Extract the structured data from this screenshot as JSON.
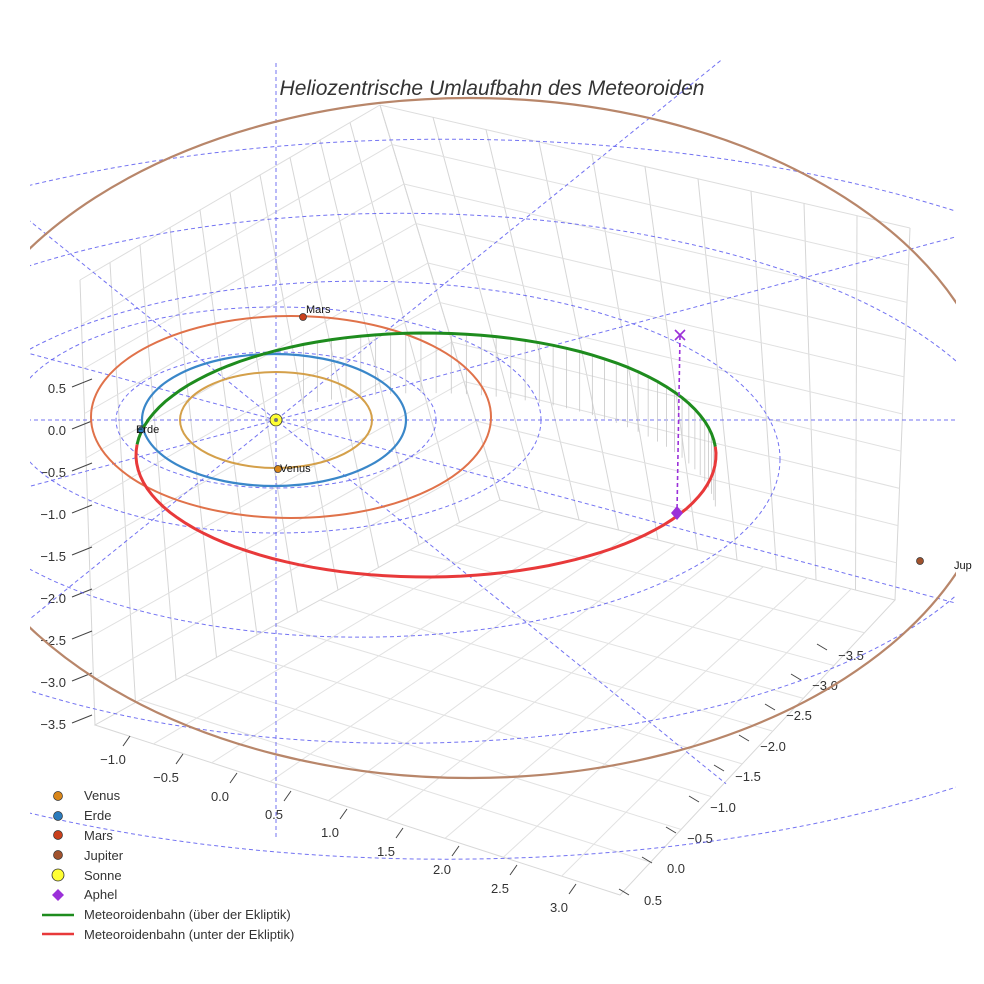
{
  "chart_data": {
    "type": "scatter",
    "title": "Heliozentrische Umlaufbahn des Meteoroiden",
    "axes": {
      "x_ticks": [
        "−1.0",
        "−0.5",
        "0.0",
        "0.5",
        "1.0",
        "1.5",
        "2.0",
        "2.5",
        "3.0"
      ],
      "y_ticks": [
        "−3.5",
        "−3.0",
        "−2.5",
        "−2.0",
        "−1.5",
        "−1.0",
        "−0.5",
        "0.0",
        "0.5"
      ],
      "z_ticks": [
        "0.5",
        "0.0",
        "−0.5",
        "−1.0",
        "−1.5",
        "−2.0",
        "−2.5",
        "−3.0",
        "−3.5"
      ],
      "grid": true
    },
    "orbits": [
      {
        "name": "Venus",
        "color": "#d4a04a"
      },
      {
        "name": "Erde",
        "color": "#3a87c9"
      },
      {
        "name": "Mars",
        "color": "#e0724a"
      },
      {
        "name": "Jupiter",
        "color": "#b8866a"
      }
    ],
    "points": [
      {
        "name": "Venus",
        "label": "Venus",
        "color": "#d9861a"
      },
      {
        "name": "Erde",
        "label": "Erde",
        "color": "#2b7bbd"
      },
      {
        "name": "Mars",
        "label": "Mars",
        "color": "#c9401c"
      },
      {
        "name": "Jupiter",
        "label": "Jup",
        "color": "#a0522d"
      },
      {
        "name": "Sonne",
        "label": "",
        "color": "#ffff33"
      },
      {
        "name": "Aphel",
        "label": "",
        "color": "#9b30d9"
      }
    ],
    "meteoroid_track": [
      {
        "name": "Meteoroidenbahn (über der Ekliptik)",
        "color": "#1e8c1e"
      },
      {
        "name": "Meteoroidenbahn (unter der Ekliptik)",
        "color": "#e8393a"
      }
    ],
    "ecliptic_grid_color": "#5b5bf0",
    "aphel_projection_color": "#9b30d9"
  },
  "legend": [
    {
      "label": "Venus",
      "symbol": "dot",
      "color": "#d9861a"
    },
    {
      "label": "Erde",
      "symbol": "dot",
      "color": "#2b7bbd"
    },
    {
      "label": "Mars",
      "symbol": "dot",
      "color": "#c9401c"
    },
    {
      "label": "Jupiter",
      "symbol": "dot",
      "color": "#a0522d"
    },
    {
      "label": "Sonne",
      "symbol": "sun",
      "color": "#ffff33"
    },
    {
      "label": "Aphel",
      "symbol": "diamond",
      "color": "#9b30d9"
    },
    {
      "label": "Meteoroidenbahn (über der Ekliptik)",
      "symbol": "line",
      "color": "#1e8c1e"
    },
    {
      "label": "Meteoroidenbahn (unter der Ekliptik)",
      "symbol": "line",
      "color": "#e8393a"
    }
  ]
}
